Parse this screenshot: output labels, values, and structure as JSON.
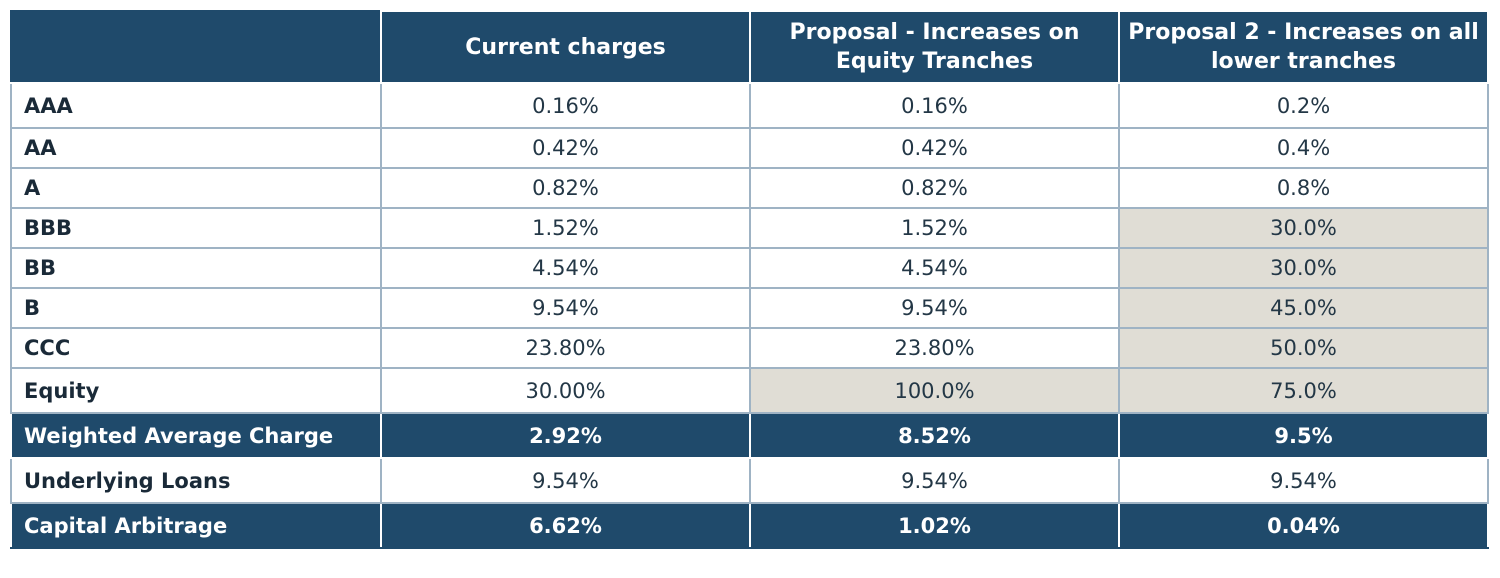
{
  "table": {
    "headers": [
      "",
      "Current charges",
      "Proposal - Increases on Equity Tranches",
      "Proposal 2 - Increases on all lower tranches"
    ],
    "rows": [
      {
        "label": "AAA",
        "current": "0.16%",
        "proposal1": "0.16%",
        "proposal2": "0.2%"
      },
      {
        "label": "AA",
        "current": "0.42%",
        "proposal1": "0.42%",
        "proposal2": "0.4%"
      },
      {
        "label": "A",
        "current": "0.82%",
        "proposal1": "0.82%",
        "proposal2": "0.8%"
      },
      {
        "label": "BBB",
        "current": "1.52%",
        "proposal1": "1.52%",
        "proposal2": "30.0%"
      },
      {
        "label": "BB",
        "current": "4.54%",
        "proposal1": "4.54%",
        "proposal2": "30.0%"
      },
      {
        "label": "B",
        "current": "9.54%",
        "proposal1": "9.54%",
        "proposal2": "45.0%"
      },
      {
        "label": "CCC",
        "current": "23.80%",
        "proposal1": "23.80%",
        "proposal2": "50.0%"
      },
      {
        "label": "Equity",
        "current": "30.00%",
        "proposal1": "100.0%",
        "proposal2": "75.0%"
      }
    ],
    "weighted_average": {
      "label": "Weighted Average Charge",
      "current": "2.92%",
      "proposal1": "8.52%",
      "proposal2": "9.5%"
    },
    "underlying_loans": {
      "label": "Underlying Loans",
      "current": "9.54%",
      "proposal1": "9.54%",
      "proposal2": "9.54%"
    },
    "capital_arbitrage": {
      "label": "Capital Arbitrage",
      "current": "6.62%",
      "proposal1": "1.02%",
      "proposal2": "0.04%"
    }
  },
  "colors": {
    "header_bg": "#1f4a6b",
    "shaded_cell": "#e0ddd5",
    "grid_line": "#9fb3c4"
  }
}
